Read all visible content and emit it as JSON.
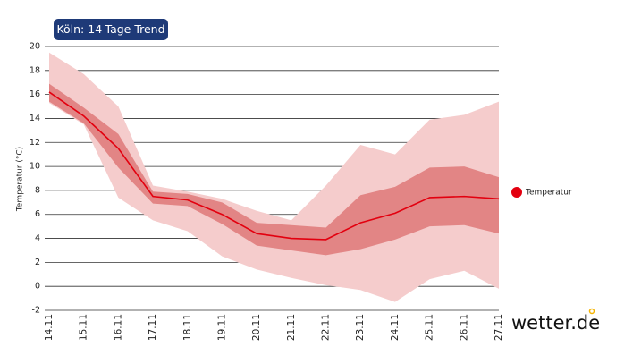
{
  "chart_data": {
    "type": "line",
    "title": "Köln: 14-Tage Trend",
    "y_label": "Temperatur (°C)",
    "brand": "wetter.de",
    "categories": [
      "14.11",
      "15.11",
      "16.11",
      "17.11",
      "18.11",
      "19.11",
      "20.11",
      "21.11",
      "22.11",
      "23.11",
      "24.11",
      "25.11",
      "26.11",
      "27.11"
    ],
    "series": [
      {
        "name": "Temperatur",
        "color": "#e3000f",
        "values": [
          16.2,
          14.2,
          11.5,
          7.5,
          7.2,
          6.0,
          4.4,
          4.0,
          3.9,
          5.3,
          6.1,
          7.4,
          7.5,
          7.3
        ]
      }
    ],
    "bands": [
      {
        "color": "#f5cccc",
        "upper": [
          19.5,
          17.7,
          15.0,
          8.4,
          7.9,
          7.3,
          6.3,
          5.5,
          8.4,
          11.8,
          11.0,
          13.9,
          14.3,
          15.4
        ],
        "lower": [
          15.3,
          13.5,
          7.4,
          5.5,
          4.6,
          2.5,
          1.4,
          0.7,
          0.1,
          -0.3,
          -1.3,
          0.6,
          1.3,
          -0.2
        ]
      },
      {
        "color": "#e28585",
        "upper": [
          16.9,
          14.9,
          12.7,
          7.9,
          7.7,
          7.0,
          5.3,
          5.1,
          4.9,
          7.6,
          8.3,
          9.9,
          10.0,
          9.1
        ],
        "lower": [
          15.4,
          13.6,
          9.9,
          6.9,
          6.7,
          5.2,
          3.4,
          3.0,
          2.6,
          3.1,
          3.9,
          5.0,
          5.1,
          4.4
        ]
      }
    ],
    "ylim": [
      -2,
      20
    ],
    "yticks": [
      -2,
      0,
      2,
      4,
      6,
      8,
      10,
      12,
      14,
      16,
      18,
      20
    ],
    "grid": true
  }
}
